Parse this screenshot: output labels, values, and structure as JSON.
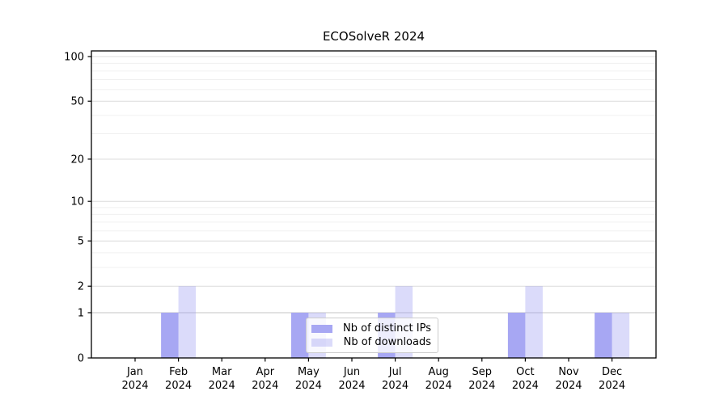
{
  "chart_data": {
    "type": "bar",
    "title": "ECOSolveR 2024",
    "categories": [
      "Jan 2024",
      "Feb 2024",
      "Mar 2024",
      "Apr 2024",
      "May 2024",
      "Jun 2024",
      "Jul 2024",
      "Aug 2024",
      "Sep 2024",
      "Oct 2024",
      "Nov 2024",
      "Dec 2024"
    ],
    "series": [
      {
        "name": "Nb of distinct IPs",
        "color": "#a7a7f3",
        "values": [
          0,
          1,
          0,
          0,
          1,
          0,
          1,
          0,
          0,
          1,
          0,
          1
        ]
      },
      {
        "name": "Nb of downloads",
        "color": "rgba(153,153,242,0.35)",
        "values": [
          0,
          2,
          0,
          0,
          1,
          0,
          2,
          0,
          0,
          2,
          0,
          1
        ]
      }
    ],
    "xlabel": "",
    "ylabel": "",
    "yticks": [
      0,
      1,
      2,
      5,
      10,
      20,
      50,
      100
    ],
    "minor_gridlines": [
      3,
      4,
      6,
      7,
      8,
      9,
      30,
      40,
      60,
      70,
      80,
      90
    ],
    "scale": "log1p",
    "ylim": [
      0,
      110
    ],
    "grid": {
      "major_color": "#dcdcdc",
      "minor_color": "#f0f0f0",
      "baseline_color": "#c6c6c6"
    },
    "legend_position": "bottom-center-inside",
    "legend": {
      "labels": [
        "Nb of distinct IPs",
        "Nb of downloads"
      ]
    }
  }
}
